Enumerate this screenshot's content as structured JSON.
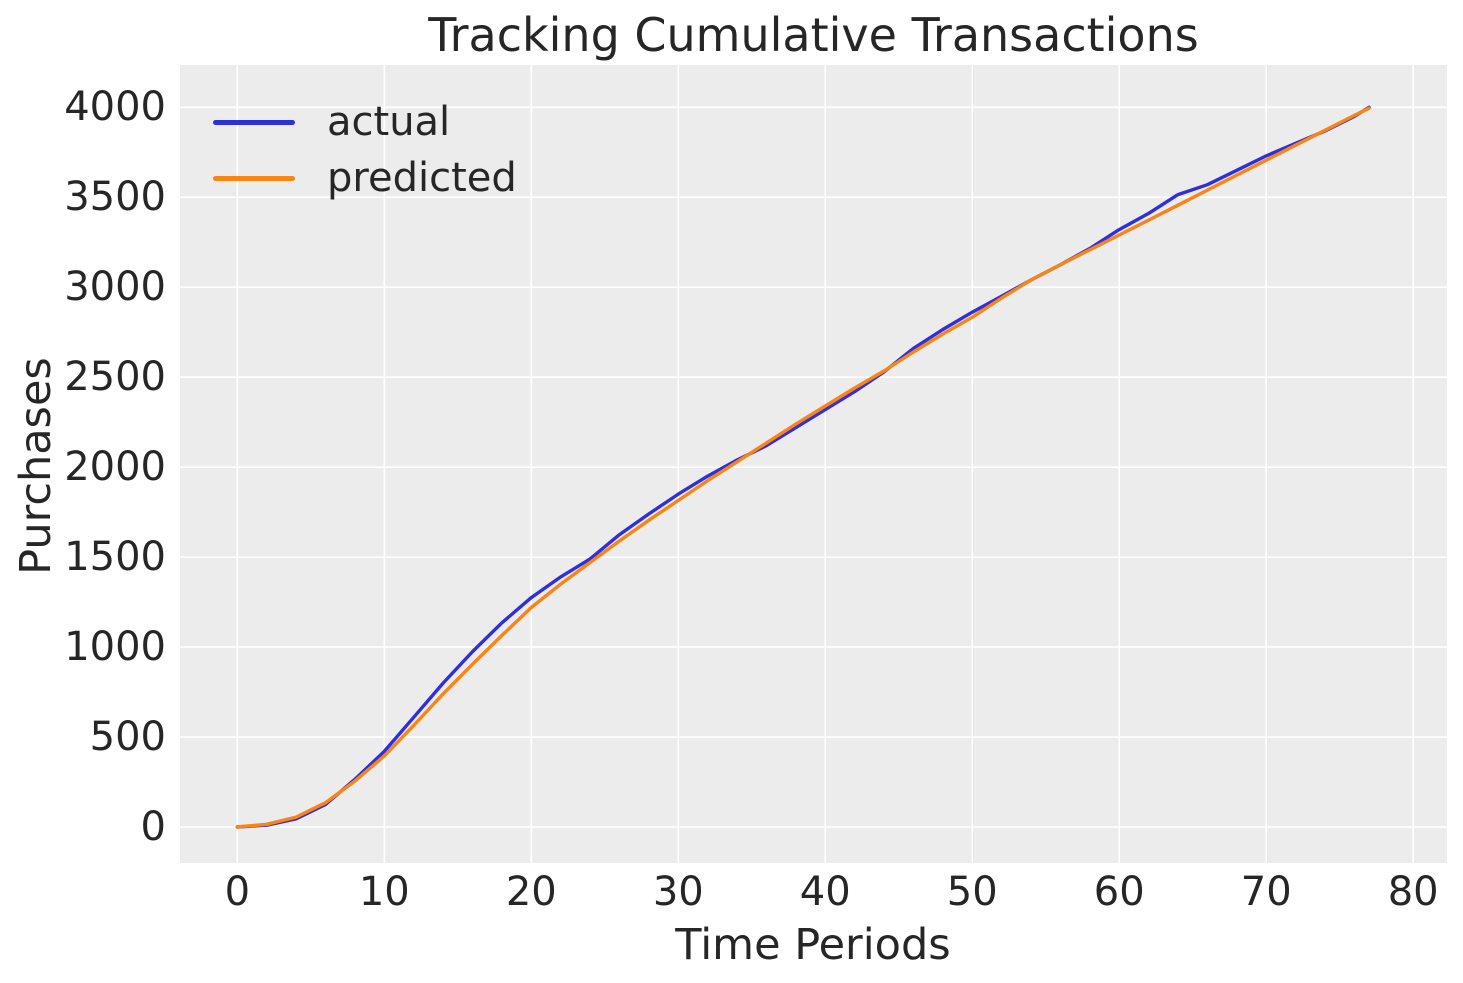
{
  "figure": {
    "title": "Tracking Cumulative Transactions"
  },
  "colors": {
    "actual_line": "#2f2fdc",
    "predicted_line": "#fa8414",
    "plot_background": "#ececec",
    "grid_line": "#ffffff",
    "text": "#262626",
    "figure_background": "#ffffff"
  },
  "chart_data": {
    "type": "line",
    "title": "Tracking Cumulative Transactions",
    "xlabel": "Time Periods",
    "ylabel": "Purchases",
    "grid": true,
    "legend_position": "upper-left",
    "xlim": [
      -3.9,
      82.3
    ],
    "ylim": [
      -200,
      4235
    ],
    "xticks": [
      0,
      10,
      20,
      30,
      40,
      50,
      60,
      70,
      80
    ],
    "yticks": [
      0,
      500,
      1000,
      1500,
      2000,
      2500,
      3000,
      3500,
      4000
    ],
    "x": [
      0,
      2,
      4,
      6,
      8,
      10,
      12,
      14,
      16,
      18,
      20,
      22,
      24,
      26,
      28,
      30,
      32,
      34,
      36,
      38,
      40,
      42,
      44,
      46,
      48,
      50,
      52,
      54,
      56,
      58,
      60,
      62,
      64,
      66,
      68,
      70,
      72,
      74,
      76,
      77
    ],
    "series": [
      {
        "name": "actual",
        "color": "#2f2fdc",
        "values": [
          0,
          10,
          45,
          125,
          265,
          420,
          610,
          800,
          975,
          1135,
          1275,
          1390,
          1490,
          1625,
          1740,
          1850,
          1950,
          2040,
          2120,
          2220,
          2320,
          2420,
          2530,
          2660,
          2765,
          2861,
          2950,
          3040,
          3125,
          3215,
          3320,
          3410,
          3515,
          3570,
          3650,
          3730,
          3800,
          3868,
          3950,
          4000
        ]
      },
      {
        "name": "predicted",
        "color": "#fa8414",
        "values": [
          0,
          15,
          55,
          135,
          255,
          395,
          565,
          740,
          905,
          1065,
          1220,
          1350,
          1470,
          1590,
          1705,
          1815,
          1925,
          2030,
          2135,
          2240,
          2340,
          2440,
          2535,
          2640,
          2740,
          2833,
          2940,
          3040,
          3125,
          3208,
          3290,
          3373,
          3456,
          3540,
          3623,
          3706,
          3789,
          3872,
          3955,
          3995
        ]
      }
    ]
  }
}
